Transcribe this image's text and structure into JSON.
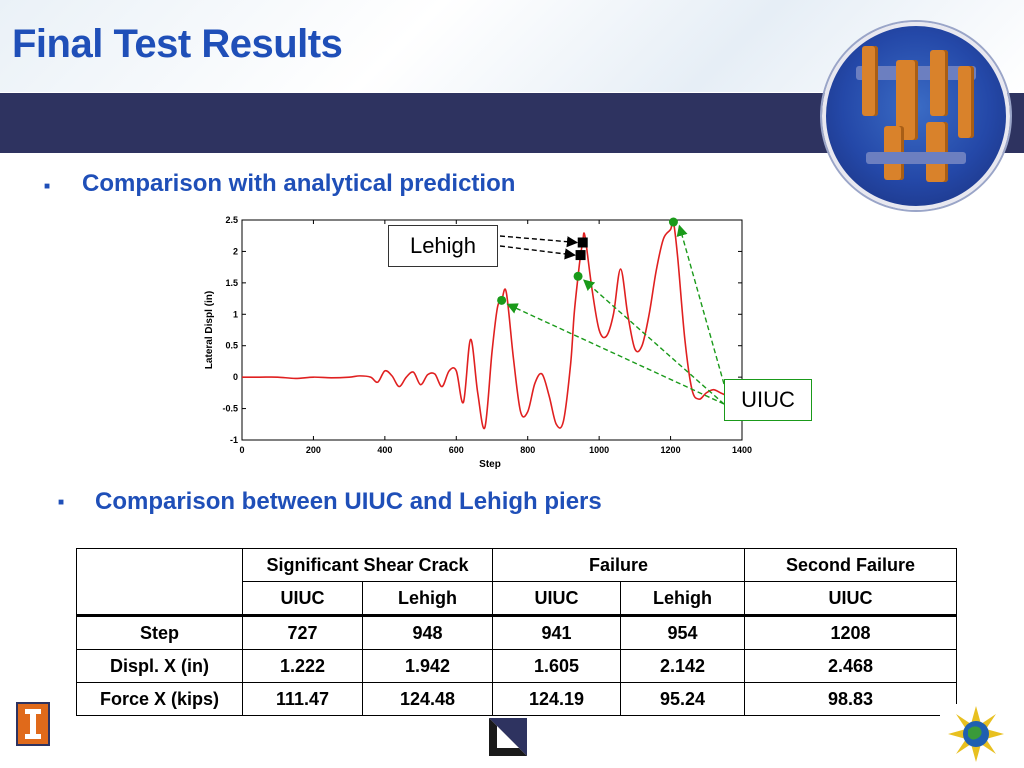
{
  "slide": {
    "title": "Final Test Results",
    "bullets": [
      "Comparison with analytical prediction",
      "Comparison between UIUC and Lehigh piers"
    ],
    "colors": {
      "title": "#1f4fb8",
      "band": "#2e3360",
      "curve": "#e02020",
      "uiuc_marker": "#1a9a1a",
      "lehigh_marker": "#000000"
    },
    "icons": [
      "bullet-square-icon",
      "university-logo-icon",
      "nees-logo-icon",
      "nsf-globe-icon"
    ]
  },
  "chart_data": {
    "type": "line",
    "xlabel": "Step",
    "ylabel": "Lateral Displ (in)",
    "xlim": [
      0,
      1400
    ],
    "ylim": [
      -1,
      2.5
    ],
    "xticks": [
      0,
      200,
      400,
      600,
      800,
      1000,
      1200,
      1400
    ],
    "yticks": [
      -1,
      -0.5,
      0,
      0.5,
      1,
      1.5,
      2,
      2.5
    ],
    "xtick_labels": [
      "0",
      "200",
      "400",
      "600",
      "800",
      "1000",
      "1200",
      "1400"
    ],
    "ytick_labels": [
      "-1",
      "-0.5",
      "0",
      "0.5",
      "1",
      "1.5",
      "2",
      "2.5"
    ],
    "grid": false,
    "series": [
      {
        "x": [
          0,
          50,
          100,
          150,
          200,
          250,
          300,
          330,
          360,
          380,
          400,
          420,
          440,
          460,
          480,
          500,
          520,
          540,
          560,
          580,
          600,
          620,
          640,
          660,
          680,
          700,
          715,
          727,
          740,
          760,
          780,
          800,
          820,
          840,
          860,
          880,
          900,
          920,
          930,
          941,
          948,
          954,
          960,
          980,
          1000,
          1020,
          1040,
          1060,
          1080,
          1100,
          1120,
          1140,
          1160,
          1180,
          1200,
          1208,
          1220,
          1240,
          1260,
          1280,
          1300,
          1320,
          1340,
          1360,
          1380,
          1400
        ],
        "values": [
          0,
          0,
          0,
          -0.02,
          0,
          -0.01,
          0,
          0.02,
          0,
          -0.08,
          0.1,
          0.02,
          -0.15,
          0,
          0.08,
          -0.12,
          0.04,
          0.05,
          -0.15,
          0.1,
          0.1,
          -0.4,
          0.6,
          -0.25,
          -0.8,
          0.4,
          1.1,
          1.222,
          1.35,
          0.3,
          -0.55,
          -0.55,
          -0.1,
          0.05,
          -0.3,
          -0.75,
          -0.7,
          0.2,
          1.0,
          1.605,
          1.942,
          2.142,
          2.25,
          1.4,
          0.75,
          0.65,
          1.0,
          1.72,
          1.0,
          0.45,
          0.5,
          1.0,
          1.7,
          2.2,
          2.35,
          2.468,
          1.9,
          0.6,
          -0.2,
          -0.35,
          -0.25,
          -0.2,
          -0.25,
          -0.3,
          -0.35,
          -0.4
        ]
      }
    ],
    "markers": [
      {
        "group": "UIUC",
        "shape": "circle",
        "points": [
          [
            727,
            1.222
          ],
          [
            941,
            1.605
          ],
          [
            1208,
            2.468
          ]
        ]
      },
      {
        "group": "Lehigh",
        "shape": "square",
        "points": [
          [
            948,
            1.942
          ],
          [
            954,
            2.142
          ]
        ]
      }
    ],
    "annotations": [
      {
        "label": "Lehigh"
      },
      {
        "label": "UIUC"
      }
    ]
  },
  "table": {
    "group_headers": [
      "Significant Shear Crack",
      "Failure",
      "Second Failure"
    ],
    "sub_headers": [
      "UIUC",
      "Lehigh",
      "UIUC",
      "Lehigh",
      "UIUC"
    ],
    "rows": [
      {
        "label": "Step",
        "values": [
          "727",
          "948",
          "941",
          "954",
          "1208"
        ]
      },
      {
        "label": "Displ. X (in)",
        "values": [
          "1.222",
          "1.942",
          "1.605",
          "2.142",
          "2.468"
        ]
      },
      {
        "label": "Force X (kips)",
        "values": [
          "111.47",
          "124.48",
          "124.19",
          "95.24",
          "98.83"
        ]
      }
    ]
  }
}
